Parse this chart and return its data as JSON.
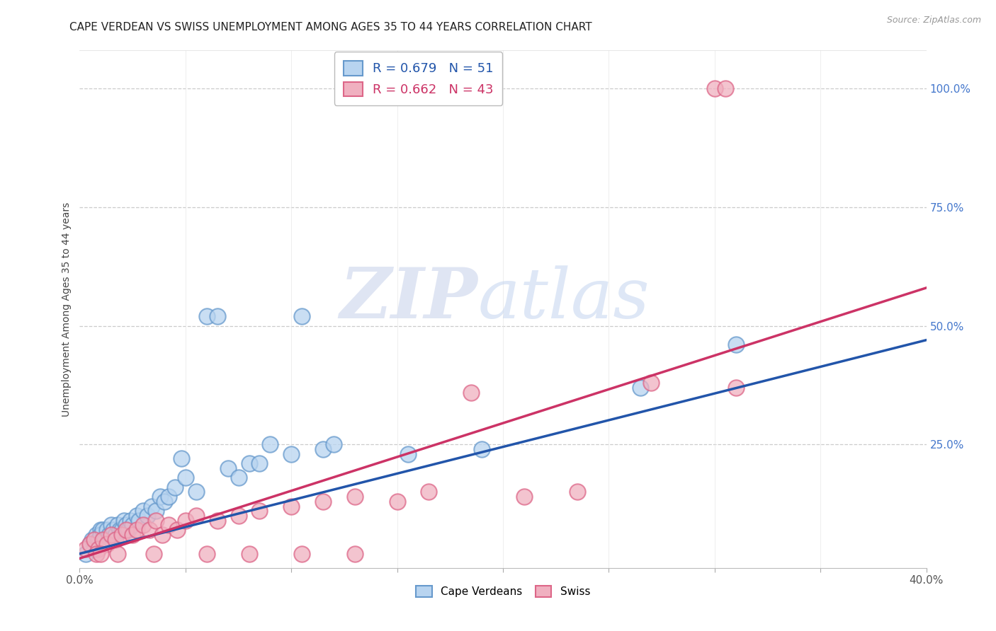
{
  "title": "CAPE VERDEAN VS SWISS UNEMPLOYMENT AMONG AGES 35 TO 44 YEARS CORRELATION CHART",
  "source": "Source: ZipAtlas.com",
  "ylabel": "Unemployment Among Ages 35 to 44 years",
  "xlim": [
    0.0,
    0.4
  ],
  "ylim": [
    -0.01,
    1.08
  ],
  "ytick_positions": [
    0.0,
    0.25,
    0.5,
    0.75,
    1.0
  ],
  "ytick_labels": [
    "",
    "25.0%",
    "50.0%",
    "75.0%",
    "100.0%"
  ],
  "xtick_positions": [
    0.0,
    0.05,
    0.1,
    0.15,
    0.2,
    0.25,
    0.3,
    0.35,
    0.4
  ],
  "xtick_labels": [
    "0.0%",
    "",
    "",
    "",
    "",
    "",
    "",
    "",
    "40.0%"
  ],
  "blue_face": "#b8d4f0",
  "blue_edge": "#6699cc",
  "blue_line": "#2255aa",
  "pink_face": "#f0b0c0",
  "pink_edge": "#dd6688",
  "pink_line": "#cc3366",
  "legend_line1_r": "R = 0.679",
  "legend_line1_n": "N = 51",
  "legend_line2_r": "R = 0.662",
  "legend_line2_n": "N = 43",
  "blue_scatter_x": [
    0.003,
    0.005,
    0.006,
    0.007,
    0.008,
    0.009,
    0.01,
    0.01,
    0.011,
    0.012,
    0.013,
    0.014,
    0.015,
    0.016,
    0.017,
    0.018,
    0.019,
    0.02,
    0.021,
    0.022,
    0.023,
    0.024,
    0.025,
    0.027,
    0.028,
    0.03,
    0.032,
    0.034,
    0.036,
    0.038,
    0.04,
    0.042,
    0.045,
    0.048,
    0.05,
    0.055,
    0.06,
    0.065,
    0.07,
    0.075,
    0.08,
    0.085,
    0.09,
    0.1,
    0.105,
    0.115,
    0.12,
    0.155,
    0.19,
    0.265,
    0.31
  ],
  "blue_scatter_y": [
    0.02,
    0.04,
    0.05,
    0.03,
    0.06,
    0.05,
    0.07,
    0.06,
    0.07,
    0.05,
    0.07,
    0.06,
    0.08,
    0.07,
    0.06,
    0.08,
    0.07,
    0.07,
    0.09,
    0.08,
    0.07,
    0.09,
    0.08,
    0.1,
    0.09,
    0.11,
    0.1,
    0.12,
    0.11,
    0.14,
    0.13,
    0.14,
    0.16,
    0.22,
    0.18,
    0.15,
    0.52,
    0.52,
    0.2,
    0.18,
    0.21,
    0.21,
    0.25,
    0.23,
    0.52,
    0.24,
    0.25,
    0.23,
    0.24,
    0.37,
    0.46
  ],
  "pink_scatter_x": [
    0.003,
    0.005,
    0.007,
    0.009,
    0.011,
    0.013,
    0.015,
    0.017,
    0.02,
    0.022,
    0.025,
    0.027,
    0.03,
    0.033,
    0.036,
    0.039,
    0.042,
    0.046,
    0.05,
    0.055,
    0.065,
    0.075,
    0.085,
    0.1,
    0.115,
    0.13,
    0.15,
    0.165,
    0.185,
    0.21,
    0.235,
    0.27,
    0.31,
    0.008,
    0.01,
    0.018,
    0.035,
    0.06,
    0.08,
    0.105,
    0.13,
    0.3,
    0.305
  ],
  "pink_scatter_y": [
    0.03,
    0.04,
    0.05,
    0.03,
    0.05,
    0.04,
    0.06,
    0.05,
    0.06,
    0.07,
    0.06,
    0.07,
    0.08,
    0.07,
    0.09,
    0.06,
    0.08,
    0.07,
    0.09,
    0.1,
    0.09,
    0.1,
    0.11,
    0.12,
    0.13,
    0.14,
    0.13,
    0.15,
    0.36,
    0.14,
    0.15,
    0.38,
    0.37,
    0.02,
    0.02,
    0.02,
    0.02,
    0.02,
    0.02,
    0.02,
    0.02,
    1.0,
    1.0
  ],
  "blue_line_x0": 0.0,
  "blue_line_y0": 0.02,
  "blue_line_x1": 0.4,
  "blue_line_y1": 0.47,
  "pink_line_x0": 0.0,
  "pink_line_y0": 0.01,
  "pink_line_x1": 0.4,
  "pink_line_y1": 0.58
}
